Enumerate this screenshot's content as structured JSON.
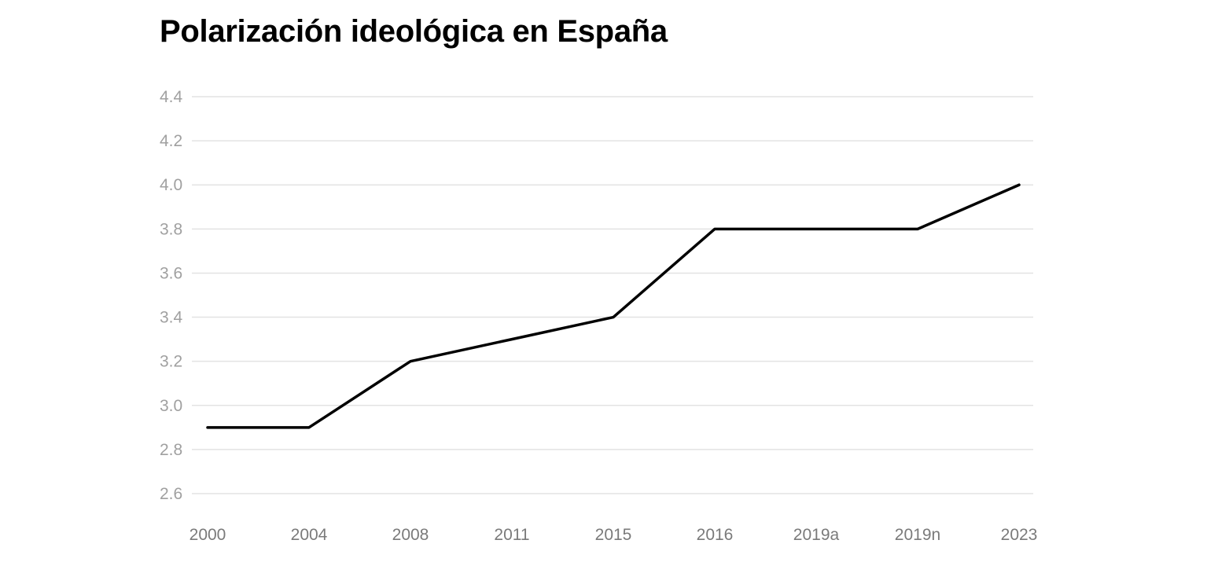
{
  "chart_data": {
    "type": "line",
    "title": "Polarización ideológica en España",
    "xlabel": "",
    "ylabel": "",
    "categories": [
      "2000",
      "2004",
      "2008",
      "2011",
      "2015",
      "2016",
      "2019a",
      "2019n",
      "2023"
    ],
    "series": [
      {
        "values": [
          2.9,
          2.9,
          3.2,
          3.3,
          3.4,
          3.8,
          3.8,
          3.8,
          4.0
        ]
      }
    ],
    "ylim": [
      2.6,
      4.4
    ],
    "yticks": [
      "2.6",
      "2.8",
      "3.0",
      "3.2",
      "3.4",
      "3.6",
      "3.8",
      "4.0",
      "4.2",
      "4.4"
    ],
    "grid": true,
    "legend": "none",
    "colors": {
      "line": "#000000",
      "grid": "#e3e3e3",
      "ytick": "#a0a0a0",
      "xtick": "#7a7a7a"
    }
  }
}
